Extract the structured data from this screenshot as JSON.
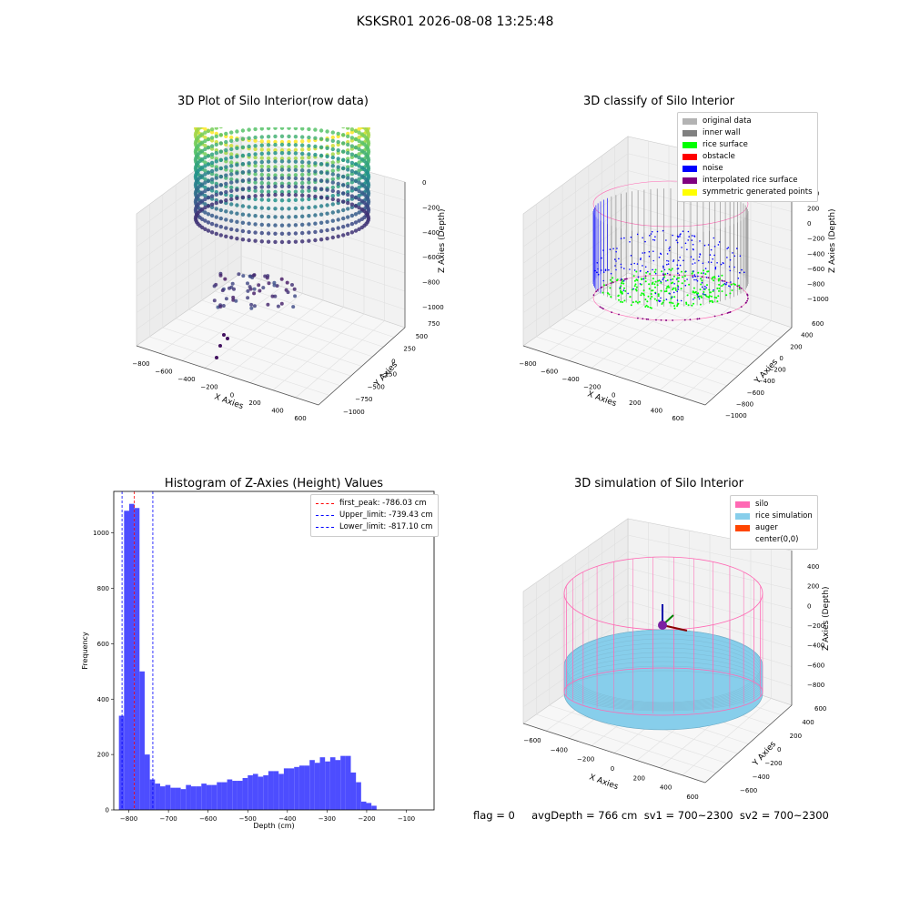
{
  "suptitle": "KSKSR01 2026-08-08 13:25:48",
  "footer": "flag = 0     avgDepth = 766 cm  sv1 = 700~2300  sv2 = 700~2300",
  "colors": {
    "original": "#b3b3b3",
    "inner_wall": "#808080",
    "rice_surface": "#00ff00",
    "obstacle": "#ff0000",
    "noise": "#0000ff",
    "interpolated": "#800080",
    "symmetric": "#ffff00",
    "silo": "#ff69b4",
    "rice_sim": "#87ceeb",
    "auger": "#ff4500",
    "hist_bar": "#4d4dff"
  },
  "panels": {
    "raw": {
      "title": "3D Plot of Silo Interior(row data)",
      "xlabel": "X Axies",
      "ylabel": "Y Axies",
      "zlabel": "Z Axies (Depth)",
      "xticks": [
        "−800",
        "−600",
        "−400",
        "−200",
        "0",
        "200",
        "400",
        "600"
      ],
      "yticks": [
        "−1000",
        "−750",
        "−500",
        "−250",
        "0",
        "250",
        "500",
        "750"
      ],
      "zticks": [
        "0",
        "−200",
        "−400",
        "−600",
        "−800",
        "−1000"
      ]
    },
    "classify": {
      "title": "3D classify of Silo Interior",
      "xlabel": "X Axies",
      "ylabel": "Y Axies",
      "zlabel": "Z Axies (Depth)",
      "xticks": [
        "−800",
        "−600",
        "−400",
        "−200",
        "0",
        "200",
        "400",
        "600"
      ],
      "yticks": [
        "−1000",
        "−800",
        "−600",
        "−400",
        "−200",
        "0",
        "200",
        "400",
        "600"
      ],
      "zticks": [
        "400",
        "200",
        "0",
        "−200",
        "−400",
        "−600",
        "−800",
        "−1000"
      ],
      "legend": [
        {
          "label": "original data",
          "color": "#b3b3b3"
        },
        {
          "label": "inner wall",
          "color": "#808080"
        },
        {
          "label": "rice surface",
          "color": "#00ff00"
        },
        {
          "label": "obstacle",
          "color": "#ff0000"
        },
        {
          "label": "noise",
          "color": "#0000ff"
        },
        {
          "label": "interpolated rice surface",
          "color": "#800080"
        },
        {
          "label": "symmetric generated points",
          "color": "#ffff00"
        }
      ]
    },
    "simulation": {
      "title": "3D simulation of Silo Interior",
      "xlabel": "X Axies",
      "ylabel": "Y Axies",
      "zlabel": "Z Axies (Depth)",
      "xticks": [
        "−600",
        "−400",
        "−200",
        "0",
        "200",
        "400",
        "600"
      ],
      "yticks": [
        "−600",
        "−400",
        "−200",
        "0",
        "200",
        "400",
        "600"
      ],
      "zticks": [
        "400",
        "200",
        "0",
        "−200",
        "−400",
        "−600",
        "−800"
      ],
      "legend": [
        {
          "label": "silo",
          "color": "#ff69b4"
        },
        {
          "label": "rice simulation",
          "color": "#87ceeb"
        },
        {
          "label": "auger",
          "color": "#ff4500"
        },
        {
          "label": "center(0,0)",
          "color": ""
        }
      ]
    }
  },
  "chart_data": {
    "type": "bar",
    "title": "Histogram of Z-Axies (Height) Values",
    "xlabel": "Depth (cm)",
    "ylabel": "Frequency",
    "xlim": [
      -838,
      -30
    ],
    "ylim": [
      0,
      1150
    ],
    "xticks": [
      -800,
      -700,
      -600,
      -500,
      -400,
      -300,
      -200,
      -100
    ],
    "yticks": [
      0,
      200,
      400,
      600,
      800,
      1000
    ],
    "bin_start": -825,
    "bin_width": 13,
    "values": [
      340,
      1080,
      1105,
      1090,
      500,
      200,
      110,
      95,
      85,
      90,
      80,
      80,
      75,
      90,
      85,
      85,
      95,
      90,
      90,
      100,
      100,
      110,
      105,
      105,
      115,
      125,
      130,
      120,
      125,
      140,
      140,
      130,
      150,
      150,
      155,
      160,
      160,
      180,
      170,
      190,
      175,
      190,
      180,
      195,
      195,
      135,
      100,
      30,
      25,
      15
    ],
    "lines": [
      {
        "label": "first_peak: -786.03 cm",
        "x": -786.03,
        "color": "#ff0000"
      },
      {
        "label": "Upper_limit: -739.43 cm",
        "x": -739.43,
        "color": "#0000ff"
      },
      {
        "label": "Lower_limit: -817.10 cm",
        "x": -817.1,
        "color": "#0000ff"
      }
    ],
    "legend_position": "upper right"
  }
}
